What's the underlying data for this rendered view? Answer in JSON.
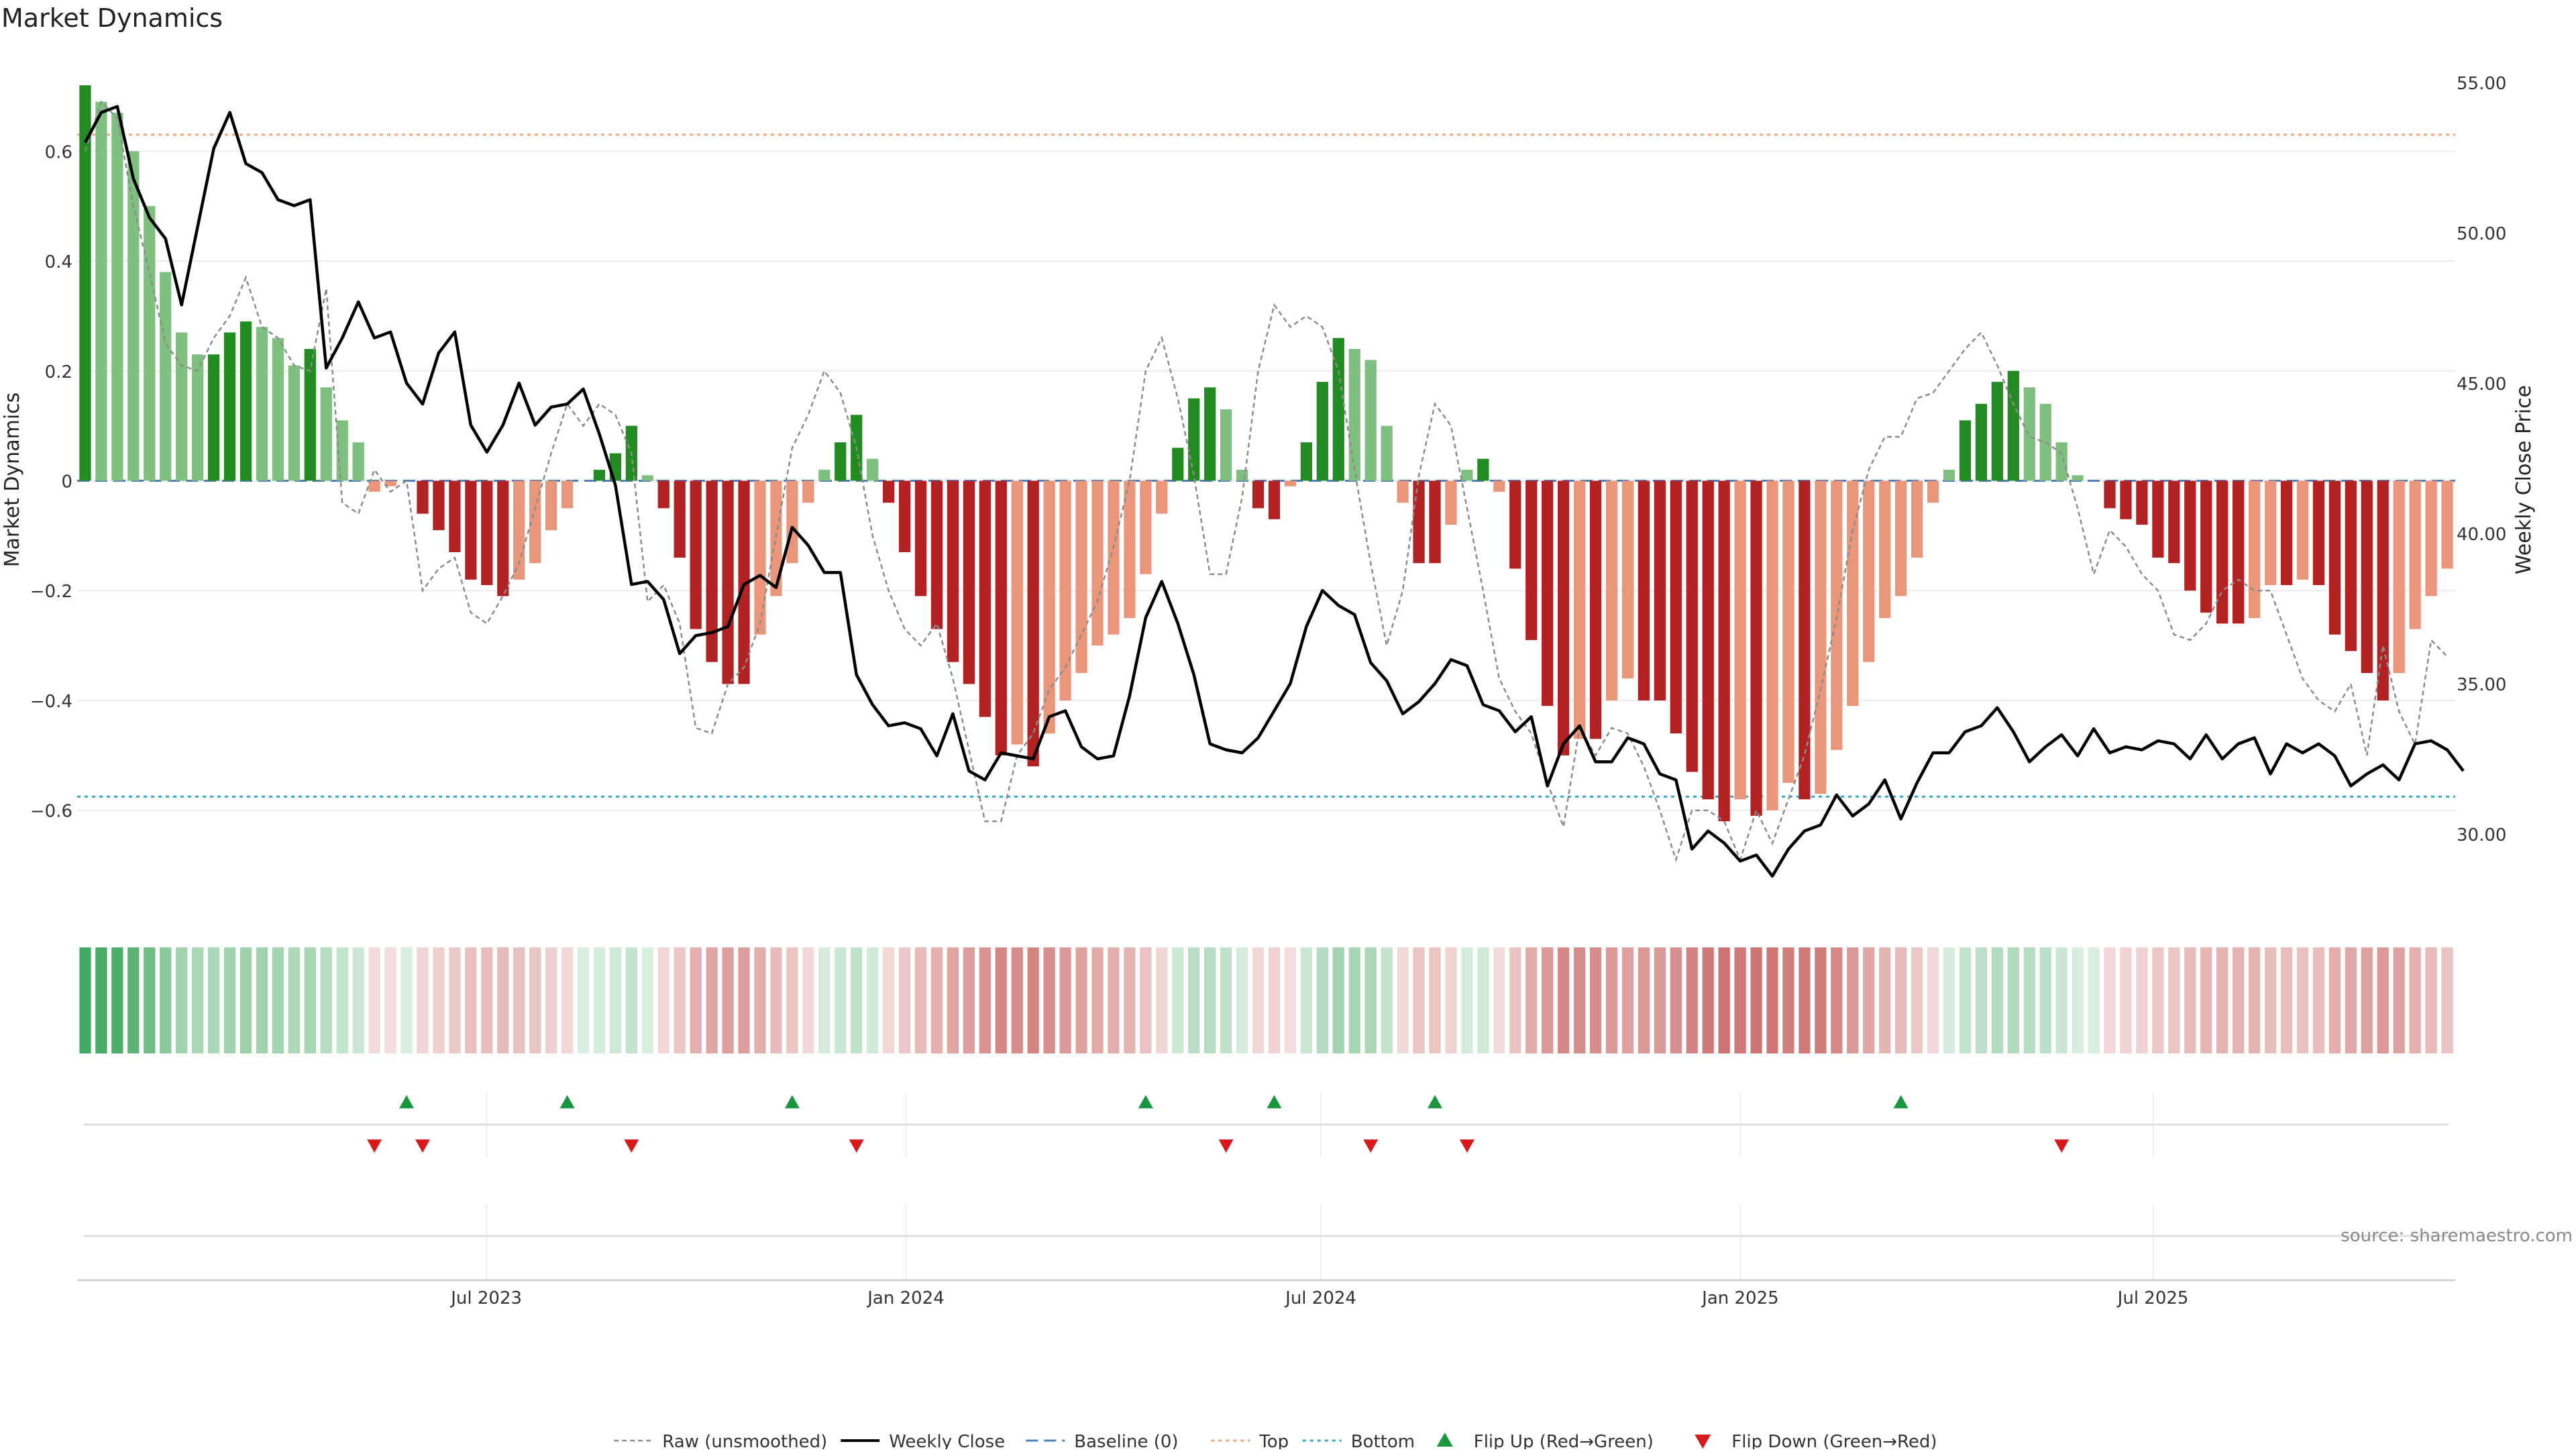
{
  "chart_data": {
    "type": "bar",
    "title": "Market Dynamics",
    "ylabel_left": "Market Dynamics",
    "ylabel_right": "Weekly Close Price",
    "ylim_left": [
      -0.78,
      0.78
    ],
    "ylim_right": [
      27.5,
      56.0
    ],
    "yticks_left": [
      -0.6,
      -0.4,
      -0.2,
      0,
      0.2,
      0.4,
      0.6
    ],
    "ytick_labels_left": [
      "−0.6",
      "−0.4",
      "−0.2",
      "0",
      "0.2",
      "0.4",
      "0.6"
    ],
    "yticks_right": [
      30,
      35,
      40,
      45,
      50,
      55
    ],
    "ytick_labels_right": [
      "30.00",
      "35.00",
      "40.00",
      "45.00",
      "50.00",
      "55.00"
    ],
    "top_line": 0.63,
    "bottom_line": -0.575,
    "x_start": "2023-01-06",
    "x_end": "2025-11-07",
    "x_ticks": [
      {
        "date": "2023-07-01",
        "label": "Jul 2023"
      },
      {
        "date": "2024-01-01",
        "label": "Jan 2024"
      },
      {
        "date": "2024-07-01",
        "label": "Jul 2024"
      },
      {
        "date": "2025-01-01",
        "label": "Jan 2025"
      },
      {
        "date": "2025-07-01",
        "label": "Jul 2025"
      }
    ],
    "series": [
      {
        "name": "Smoothed (bars)",
        "values": [
          0.72,
          0.69,
          0.67,
          0.6,
          0.5,
          0.38,
          0.27,
          0.23,
          0.23,
          0.27,
          0.29,
          0.28,
          0.26,
          0.21,
          0.24,
          0.17,
          0.11,
          0.07,
          -0.02,
          -0.01,
          0,
          -0.06,
          -0.09,
          -0.13,
          -0.18,
          -0.19,
          -0.21,
          -0.18,
          -0.15,
          -0.09,
          -0.05,
          0,
          0.02,
          0.05,
          0.1,
          0.01,
          -0.05,
          -0.14,
          -0.27,
          -0.33,
          -0.37,
          -0.37,
          -0.28,
          -0.21,
          -0.15,
          -0.04,
          0.02,
          0.07,
          0.12,
          0.04,
          -0.04,
          -0.13,
          -0.21,
          -0.27,
          -0.33,
          -0.37,
          -0.43,
          -0.5,
          -0.48,
          -0.52,
          -0.46,
          -0.4,
          -0.35,
          -0.3,
          -0.28,
          -0.25,
          -0.17,
          -0.06,
          0.06,
          0.15,
          0.17,
          0.13,
          0.02,
          -0.05,
          -0.07,
          -0.01,
          0.07,
          0.18,
          0.26,
          0.24,
          0.22,
          0.1,
          -0.04,
          -0.15,
          -0.15,
          -0.08,
          0.02,
          0.04,
          -0.02,
          -0.16,
          -0.29,
          -0.41,
          -0.5,
          -0.47,
          -0.47,
          -0.4,
          -0.36,
          -0.4,
          -0.4,
          -0.46,
          -0.53,
          -0.58,
          -0.62,
          -0.58,
          -0.61,
          -0.6,
          -0.55,
          -0.58,
          -0.57,
          -0.49,
          -0.41,
          -0.33,
          -0.25,
          -0.21,
          -0.14,
          -0.04,
          0.02,
          0.11,
          0.14,
          0.18,
          0.2,
          0.17,
          0.14,
          0.07,
          0.01,
          0,
          -0.05,
          -0.07,
          -0.08,
          -0.14,
          -0.15,
          -0.2,
          -0.24,
          -0.26,
          -0.26,
          -0.25,
          -0.19,
          -0.19,
          -0.18,
          -0.19,
          -0.28,
          -0.31,
          -0.35,
          -0.4,
          -0.35,
          -0.27,
          -0.21,
          -0.16
        ]
      },
      {
        "name": "Raw (unsmoothed)",
        "values": [
          0.6,
          0.69,
          0.66,
          0.5,
          0.38,
          0.25,
          0.21,
          0.2,
          0.26,
          0.3,
          0.37,
          0.28,
          0.26,
          0.21,
          0.2,
          0.35,
          -0.04,
          -0.06,
          0.02,
          -0.02,
          0,
          -0.2,
          -0.16,
          -0.14,
          -0.24,
          -0.26,
          -0.21,
          -0.15,
          -0.05,
          0.05,
          0.14,
          0.1,
          0.14,
          0.12,
          0.05,
          -0.22,
          -0.19,
          -0.26,
          -0.45,
          -0.46,
          -0.37,
          -0.34,
          -0.26,
          -0.1,
          0.06,
          0.12,
          0.2,
          0.16,
          0.06,
          -0.1,
          -0.2,
          -0.27,
          -0.3,
          -0.26,
          -0.36,
          -0.49,
          -0.62,
          -0.62,
          -0.5,
          -0.46,
          -0.38,
          -0.34,
          -0.28,
          -0.22,
          -0.12,
          0,
          0.2,
          0.26,
          0.15,
          0.01,
          -0.17,
          -0.17,
          -0.03,
          0.2,
          0.32,
          0.28,
          0.3,
          0.28,
          0.2,
          0.02,
          -0.15,
          -0.3,
          -0.2,
          0.01,
          0.14,
          0.1,
          -0.05,
          -0.2,
          -0.36,
          -0.42,
          -0.46,
          -0.55,
          -0.63,
          -0.45,
          -0.5,
          -0.45,
          -0.46,
          -0.52,
          -0.6,
          -0.69,
          -0.6,
          -0.6,
          -0.62,
          -0.69,
          -0.6,
          -0.66,
          -0.58,
          -0.5,
          -0.38,
          -0.25,
          -0.09,
          0.02,
          0.08,
          0.08,
          0.15,
          0.16,
          0.2,
          0.24,
          0.27,
          0.21,
          0.14,
          0.08,
          0.07,
          0.05,
          -0.05,
          -0.17,
          -0.09,
          -0.12,
          -0.17,
          -0.2,
          -0.28,
          -0.29,
          -0.26,
          -0.2,
          -0.18,
          -0.2,
          -0.2,
          -0.28,
          -0.36,
          -0.4,
          -0.42,
          -0.37,
          -0.5,
          -0.3,
          -0.42,
          -0.48,
          -0.29,
          -0.32
        ]
      },
      {
        "name": "Weekly Close",
        "axis": "right",
        "values": [
          53.0,
          54.0,
          54.2,
          51.8,
          50.5,
          49.8,
          47.6,
          50.2,
          52.8,
          54.0,
          52.3,
          52.0,
          51.1,
          50.9,
          51.1,
          45.5,
          46.5,
          47.7,
          46.5,
          46.7,
          45.0,
          44.3,
          46.0,
          46.7,
          43.6,
          42.7,
          43.6,
          45.0,
          43.6,
          44.2,
          44.3,
          44.8,
          43.3,
          41.6,
          38.3,
          38.4,
          37.8,
          36.0,
          36.6,
          36.7,
          36.9,
          38.3,
          38.6,
          38.2,
          40.2,
          39.6,
          38.7,
          38.7,
          35.3,
          34.3,
          33.6,
          33.7,
          33.5,
          32.6,
          34.0,
          32.1,
          31.8,
          32.7,
          32.6,
          32.5,
          33.9,
          34.1,
          32.9,
          32.5,
          32.6,
          34.6,
          37.2,
          38.4,
          37.0,
          35.3,
          33.0,
          32.8,
          32.7,
          33.2,
          34.1,
          35.0,
          36.9,
          38.1,
          37.6,
          37.3,
          35.7,
          35.1,
          34.0,
          34.4,
          35.0,
          35.8,
          35.6,
          34.3,
          34.1,
          33.4,
          33.9,
          31.6,
          33.0,
          33.6,
          32.4,
          32.4,
          33.2,
          33.0,
          32.0,
          31.8,
          29.5,
          30.1,
          29.7,
          29.1,
          29.3,
          28.6,
          29.5,
          30.1,
          30.3,
          31.3,
          30.6,
          31.0,
          31.8,
          30.5,
          31.7,
          32.7,
          32.7,
          33.4,
          33.6,
          34.2,
          33.4,
          32.4,
          32.9,
          33.3,
          32.6,
          33.5,
          32.7,
          32.9,
          32.8,
          33.1,
          33.0,
          32.5,
          33.3,
          32.5,
          33.0,
          33.2,
          32.0,
          33.0,
          32.7,
          33.0,
          32.6,
          31.6,
          32.0,
          32.3,
          31.8,
          33.0,
          33.1,
          32.8,
          32.1
        ]
      }
    ],
    "heat_strip": {
      "label": "",
      "values_source": "Smoothed (bars)"
    },
    "flips_up": [
      {
        "index": 20
      },
      {
        "index": 30
      },
      {
        "index": 44
      },
      {
        "index": 66
      },
      {
        "index": 74
      },
      {
        "index": 84
      },
      {
        "index": 113
      }
    ],
    "flips_down": [
      {
        "index": 18
      },
      {
        "index": 21
      },
      {
        "index": 34
      },
      {
        "index": 48
      },
      {
        "index": 71
      },
      {
        "index": 80
      },
      {
        "index": 86
      },
      {
        "index": 123
      }
    ],
    "legend": [
      {
        "label": "Raw (unsmoothed)",
        "style": "dashed-gray"
      },
      {
        "label": "Weekly Close",
        "style": "solid-black"
      },
      {
        "label": "Baseline (0)",
        "style": "dashed-blue"
      },
      {
        "label": "Top",
        "style": "dotted-orange"
      },
      {
        "label": "Bottom",
        "style": "dotted-cyan"
      },
      {
        "label": "Flip Up (Red→Green)",
        "style": "triangle-up-green"
      },
      {
        "label": "Flip Down (Green→Red)",
        "style": "triangle-down-red"
      }
    ],
    "legend_placement": "bottom-center",
    "source_note": "source: sharemaestro.com"
  },
  "colors": {
    "green_strong": "#228b22",
    "green_soft": "#7fbf7f",
    "red_strong": "#b22222",
    "red_soft": "#e9967a",
    "weekly_close": "#000000",
    "raw": "#8c8c8c",
    "baseline": "#4f7fbf",
    "top": "#f4a582",
    "bottom": "#36a6c9",
    "flip_up": "#1a9641",
    "flip_down": "#d7191c",
    "grid": "#ececec"
  }
}
